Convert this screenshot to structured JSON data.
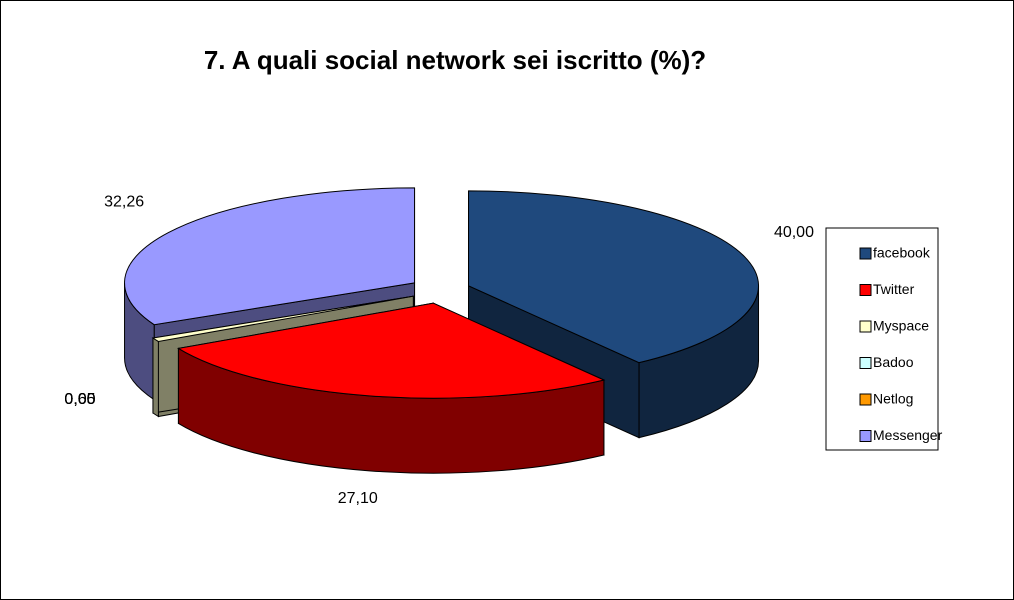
{
  "chart_data": {
    "type": "pie3d",
    "title": "7. A quali social network sei iscritto (%)?",
    "categories": [
      "facebook",
      "Twitter",
      "Myspace",
      "Badoo",
      "Netlog",
      "Messenger"
    ],
    "values": [
      40.0,
      27.1,
      0.65,
      0.0,
      0.0,
      32.26
    ],
    "value_labels": [
      "40,00",
      "27,10",
      "0,65",
      "0,00",
      "0,00",
      "32,26"
    ],
    "colors": [
      "#1f497d",
      "#ff0000",
      "#ffffcc",
      "#ccffff",
      "#ff9900",
      "#9999ff"
    ],
    "legend": "right"
  }
}
